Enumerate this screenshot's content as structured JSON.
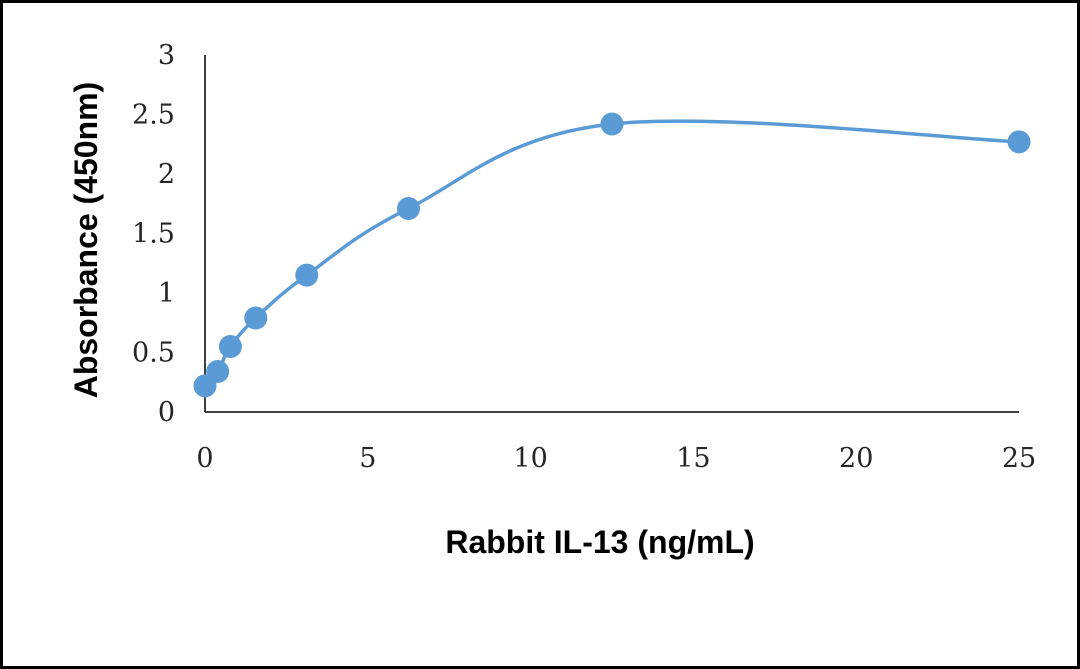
{
  "chart_data": {
    "type": "scatter",
    "title": "",
    "xlabel": "Rabbit IL-13 (ng/mL)",
    "ylabel": "Absorbance (450nm)",
    "xlim": [
      0,
      25
    ],
    "ylim": [
      0,
      3
    ],
    "xticks": [
      "0",
      "5",
      "10",
      "15",
      "20",
      "25"
    ],
    "yticks": [
      "0",
      "0.5",
      "1",
      "1.5",
      "2",
      "2.5",
      "3"
    ],
    "grid": false,
    "legend": "none",
    "line_style": "smoothed",
    "series": [
      {
        "color": "#5b9bd5",
        "x": [
          0,
          0.39,
          0.78,
          1.56,
          3.125,
          6.25,
          12.5,
          25
        ],
        "y": [
          0.22,
          0.34,
          0.55,
          0.79,
          1.15,
          1.71,
          2.42,
          2.27
        ]
      }
    ]
  }
}
